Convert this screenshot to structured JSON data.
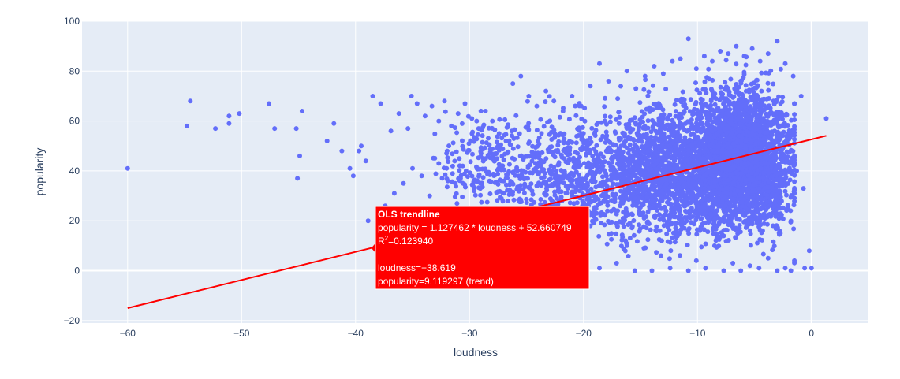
{
  "chart_data": {
    "type": "scatter",
    "xlabel": "loudness",
    "ylabel": "popularity",
    "xlim": [
      -64,
      5
    ],
    "ylim": [
      -21,
      100
    ],
    "x_ticks": [
      -60,
      -50,
      -40,
      -30,
      -20,
      -10,
      0
    ],
    "y_ticks": [
      -20,
      0,
      20,
      40,
      60,
      80,
      100
    ],
    "x_tick_labels": [
      "−60",
      "−50",
      "−40",
      "−30",
      "−20",
      "−10",
      "0"
    ],
    "y_tick_labels": [
      "−20",
      "0",
      "20",
      "40",
      "60",
      "80",
      "100"
    ],
    "grid": true,
    "colors": {
      "points": "#636efa",
      "trendline": "#ff0000",
      "plot_bg": "#e5ecf6",
      "tooltip_bg": "#ff0000"
    },
    "series": [
      {
        "type": "scatter",
        "points": [
          [
            -60.0,
            41
          ],
          [
            -54.8,
            58
          ],
          [
            -54.5,
            68
          ],
          [
            -52.3,
            57
          ],
          [
            -51.1,
            62
          ],
          [
            -51.1,
            59
          ],
          [
            -50.2,
            63
          ],
          [
            -47.6,
            67
          ],
          [
            -47.1,
            57
          ],
          [
            -45.2,
            57
          ],
          [
            -44.9,
            46
          ],
          [
            -44.7,
            64
          ],
          [
            -45.1,
            37
          ],
          [
            -41.9,
            59
          ],
          [
            -42.5,
            52
          ],
          [
            -41.2,
            48
          ],
          [
            -40.5,
            41
          ],
          [
            -40.2,
            38
          ],
          [
            -39.7,
            48
          ],
          [
            -39.5,
            50
          ],
          [
            -39.1,
            44
          ],
          [
            -38.5,
            70
          ],
          [
            -37.8,
            67
          ],
          [
            -36.9,
            56
          ],
          [
            -36.2,
            63
          ],
          [
            -35.4,
            57
          ],
          [
            -35.1,
            70
          ],
          [
            -34.6,
            67
          ],
          [
            -33.9,
            62
          ],
          [
            -33.3,
            66
          ],
          [
            -32.7,
            60
          ],
          [
            -32.2,
            68
          ],
          [
            -31.6,
            58
          ],
          [
            -31.0,
            63
          ],
          [
            -30.4,
            67
          ],
          [
            -29.8,
            61
          ],
          [
            -29.2,
            57
          ],
          [
            -28.6,
            64
          ],
          [
            -28.0,
            60
          ],
          [
            -27.4,
            55
          ],
          [
            -26.8,
            52
          ],
          [
            -26.2,
            75
          ],
          [
            -25.5,
            78
          ],
          [
            -24.8,
            70
          ],
          [
            -24.1,
            66
          ],
          [
            -23.3,
            72
          ],
          [
            -22.6,
            68
          ],
          [
            -21.8,
            64
          ],
          [
            -21.0,
            70
          ],
          [
            -20.2,
            66
          ],
          [
            -19.4,
            74
          ],
          [
            -18.6,
            83
          ],
          [
            -17.8,
            76
          ],
          [
            -17.0,
            69
          ],
          [
            -16.2,
            80
          ],
          [
            -15.4,
            73
          ],
          [
            -14.6,
            78
          ],
          [
            -13.8,
            82
          ],
          [
            -13.0,
            79
          ],
          [
            -12.2,
            84
          ],
          [
            -11.5,
            85
          ],
          [
            -10.8,
            93
          ],
          [
            -10.1,
            81
          ],
          [
            -9.4,
            86
          ],
          [
            -8.7,
            84
          ],
          [
            -8.0,
            88
          ],
          [
            -7.3,
            87
          ],
          [
            -6.6,
            90
          ],
          [
            -5.9,
            86
          ],
          [
            -5.2,
            89
          ],
          [
            -4.5,
            84
          ],
          [
            -3.8,
            87
          ],
          [
            -3.0,
            92
          ],
          [
            -2.3,
            83
          ],
          [
            -1.6,
            78
          ],
          [
            -0.9,
            70
          ],
          [
            1.3,
            61
          ],
          [
            -38.9,
            20
          ],
          [
            -38.1,
            21
          ],
          [
            -37.4,
            26
          ],
          [
            -36.6,
            31
          ],
          [
            -35.8,
            35
          ],
          [
            -35.0,
            41
          ],
          [
            -34.2,
            38
          ],
          [
            -33.5,
            30
          ],
          [
            -32.7,
            43
          ],
          [
            -31.9,
            36
          ],
          [
            -31.1,
            27
          ],
          [
            -30.3,
            40
          ],
          [
            -29.6,
            32
          ],
          [
            -28.8,
            22
          ],
          [
            -28.0,
            45
          ],
          [
            -27.2,
            29
          ],
          [
            -26.4,
            15
          ],
          [
            -25.7,
            38
          ],
          [
            -24.9,
            12
          ],
          [
            -24.1,
            34
          ],
          [
            -23.3,
            8
          ],
          [
            -22.5,
            27
          ],
          [
            -21.8,
            5
          ],
          [
            -21.0,
            31
          ],
          [
            -20.2,
            2
          ],
          [
            -19.4,
            18
          ],
          [
            -18.6,
            1
          ],
          [
            -17.9,
            24
          ],
          [
            -17.1,
            3
          ],
          [
            -16.3,
            12
          ],
          [
            -15.5,
            0
          ],
          [
            -14.7,
            9
          ],
          [
            -14.0,
            0
          ],
          [
            -13.2,
            6
          ],
          [
            -12.4,
            1
          ],
          [
            -11.6,
            15
          ],
          [
            -10.8,
            0
          ],
          [
            -10.1,
            4
          ],
          [
            -9.3,
            1
          ],
          [
            -8.5,
            10
          ],
          [
            -7.7,
            0
          ],
          [
            -6.9,
            3
          ],
          [
            -6.2,
            0
          ],
          [
            -5.4,
            2
          ],
          [
            -4.6,
            1
          ],
          [
            -3.8,
            5
          ],
          [
            -3.0,
            0
          ],
          [
            -2.3,
            1
          ],
          [
            -1.5,
            4
          ],
          [
            -0.2,
            8
          ],
          [
            0.0,
            1
          ],
          [
            -1.8,
            0
          ],
          [
            -0.6,
            1
          ],
          [
            -2.8,
            16
          ],
          [
            -2.1,
            25
          ],
          [
            -1.3,
            40
          ],
          [
            -0.7,
            33
          ]
        ],
        "clouds": [
          {
            "x_center": -6.0,
            "x_spread": 4.5,
            "y_center": 45,
            "y_spread": 30,
            "count": 2600
          },
          {
            "x_center": -12.0,
            "x_spread": 6.0,
            "y_center": 40,
            "y_spread": 28,
            "count": 1500
          },
          {
            "x_center": -20.0,
            "x_spread": 7.0,
            "y_center": 38,
            "y_spread": 26,
            "count": 700
          },
          {
            "x_center": -28.0,
            "x_spread": 5.0,
            "y_center": 42,
            "y_spread": 20,
            "count": 260
          }
        ]
      },
      {
        "name": "OLS trendline",
        "type": "line",
        "x": [
          -60.0,
          1.3
        ],
        "y": [
          -15.0,
          54.1
        ]
      }
    ],
    "hover": {
      "title": "OLS trendline",
      "equation": "popularity = 1.127462 * loudness + 52.660749",
      "r2_label": "R",
      "r2_sup": "2",
      "r2_value": "=0.123940",
      "x_text": "loudness=−38.619",
      "y_text": "popularity=9.119297 (trend)",
      "x": -38.619,
      "y": 9.119297
    }
  }
}
